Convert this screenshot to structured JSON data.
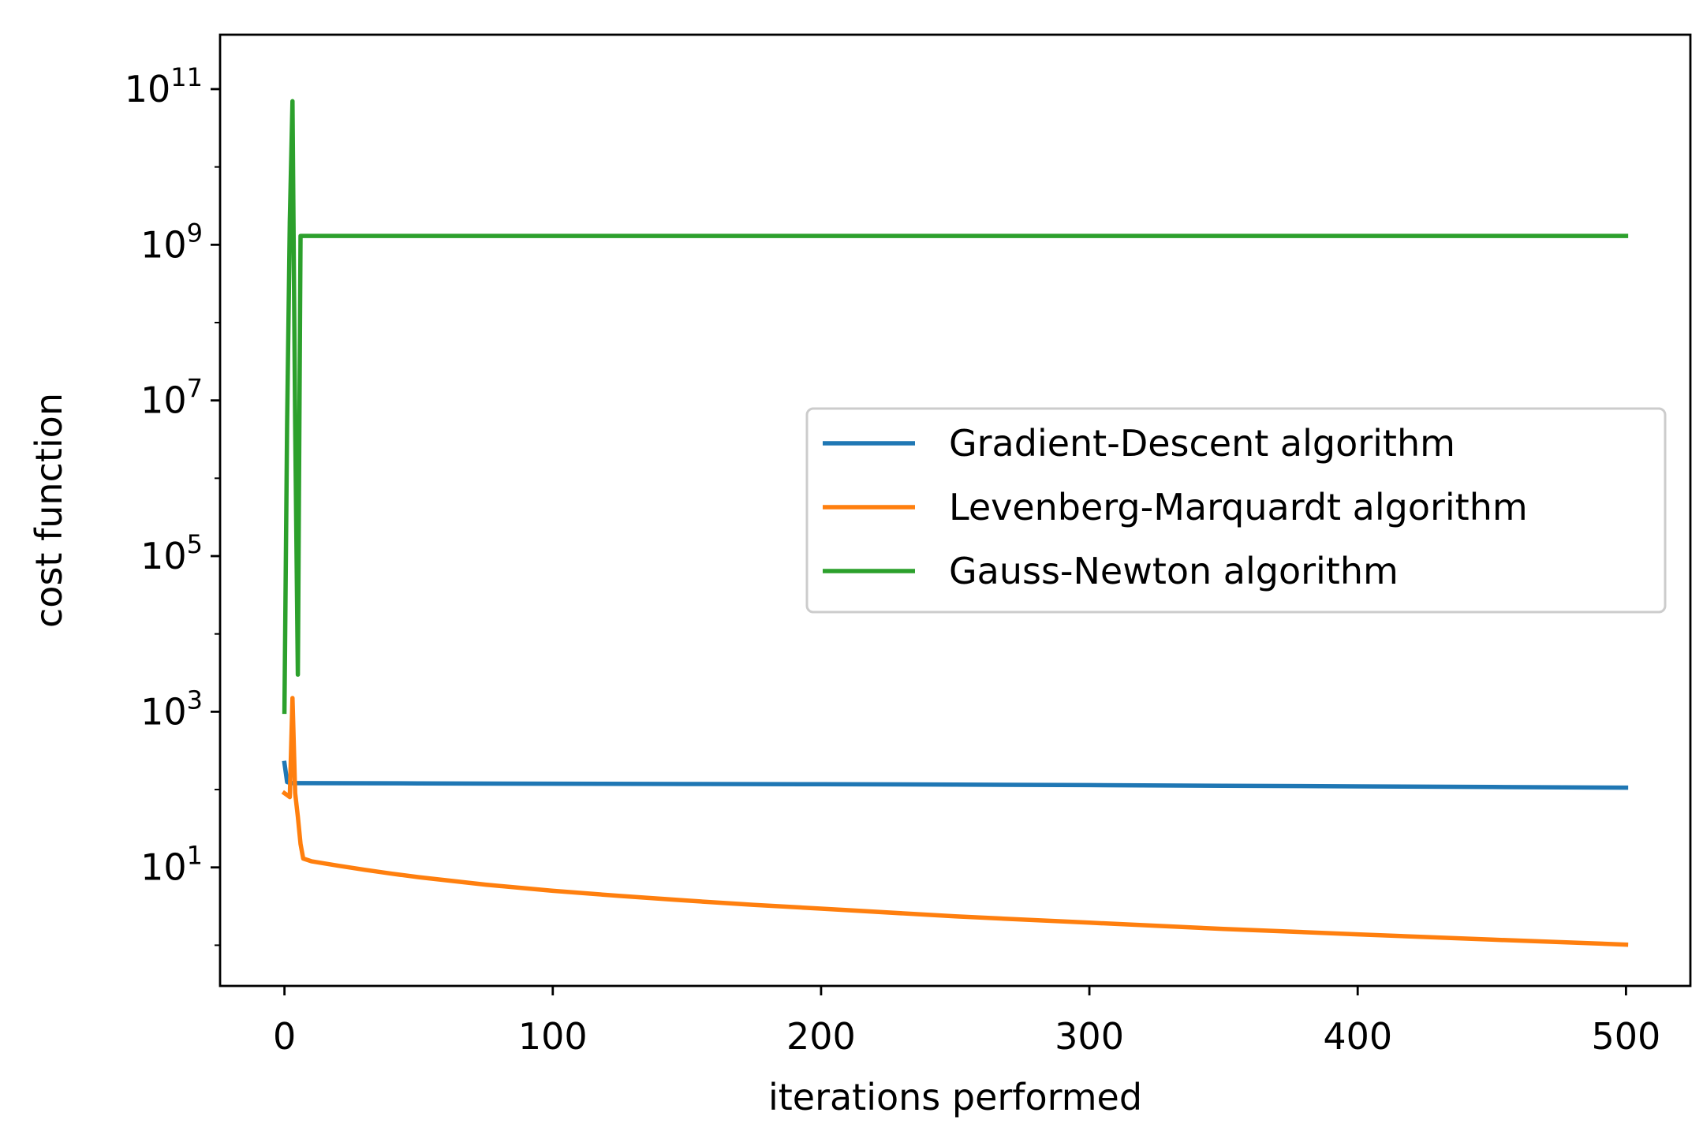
{
  "chart_data": {
    "type": "line",
    "title": "",
    "xlabel": "iterations performed",
    "ylabel": "cost function",
    "xscale": "linear",
    "yscale": "log",
    "xlim": [
      -24,
      524
    ],
    "ylim": [
      0.3,
      500000000000
    ],
    "xticks": [
      0,
      100,
      200,
      300,
      400,
      500
    ],
    "yticks": [
      {
        "value": 10,
        "base": "10",
        "exp": "1"
      },
      {
        "value": 1000,
        "base": "10",
        "exp": "3"
      },
      {
        "value": 100000,
        "base": "10",
        "exp": "5"
      },
      {
        "value": 10000000,
        "base": "10",
        "exp": "7"
      },
      {
        "value": 1000000000,
        "base": "10",
        "exp": "9"
      },
      {
        "value": 100000000000,
        "base": "10",
        "exp": "11"
      }
    ],
    "grid": false,
    "legend_position": "center-right",
    "series": [
      {
        "name": "Gradient-Descent algorithm",
        "color": "#1f77b4",
        "x": [
          0,
          1,
          2,
          3,
          50,
          100,
          150,
          200,
          250,
          300,
          350,
          400,
          450,
          500
        ],
        "y": [
          220,
          125,
          122,
          121,
          120,
          119,
          118,
          117,
          116,
          114,
          112,
          110,
          108,
          106
        ]
      },
      {
        "name": "Levenberg-Marquardt algorithm",
        "color": "#ff7f0e",
        "x": [
          0,
          1,
          2,
          3,
          4,
          5,
          6,
          7,
          10,
          20,
          30,
          40,
          50,
          75,
          100,
          125,
          150,
          175,
          200,
          250,
          300,
          350,
          400,
          450,
          500
        ],
        "y": [
          90,
          85,
          80,
          1500,
          90,
          45,
          20,
          13,
          12,
          10.5,
          9.3,
          8.3,
          7.5,
          6.0,
          5.0,
          4.3,
          3.75,
          3.3,
          2.95,
          2.35,
          1.95,
          1.62,
          1.38,
          1.18,
          1.02
        ]
      },
      {
        "name": "Gauss-Newton algorithm",
        "color": "#2ca02c",
        "x": [
          0,
          1,
          2,
          3,
          4,
          5,
          6,
          7,
          100,
          200,
          300,
          400,
          500
        ],
        "y": [
          1000,
          5000000,
          2000000000,
          70000000000,
          5000000,
          3000,
          1300000000,
          1300000000,
          1300000000,
          1300000000,
          1300000000,
          1300000000,
          1300000000
        ]
      }
    ]
  }
}
